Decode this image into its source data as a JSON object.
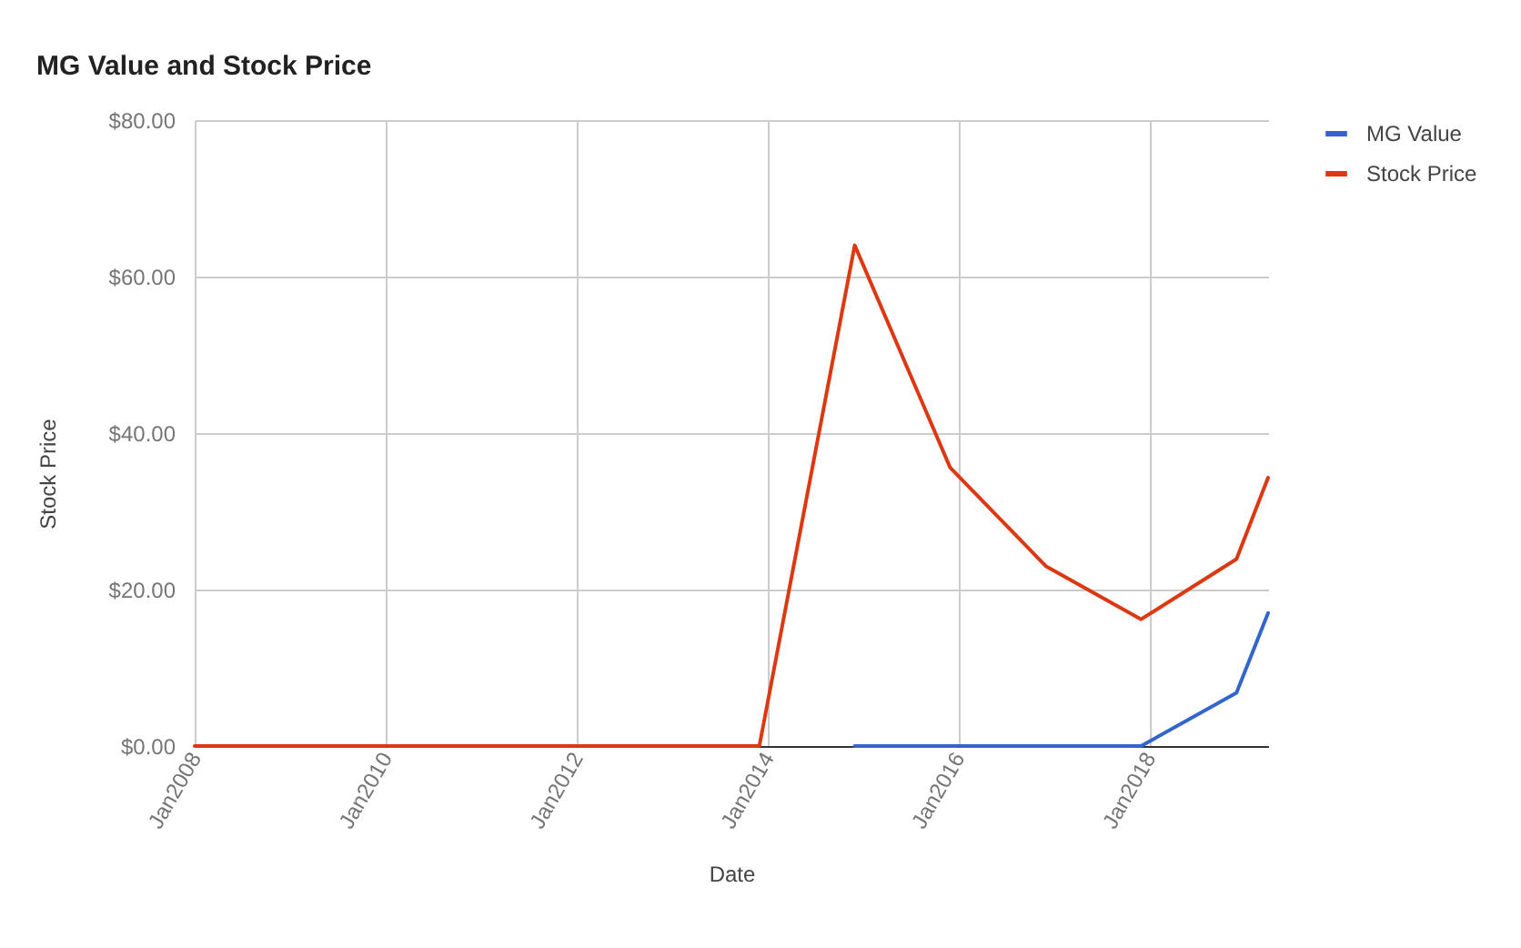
{
  "chart_data": {
    "type": "line",
    "title": "MG Value and Stock Price",
    "xlabel": "Date",
    "ylabel": "Stock Price",
    "xlim": [
      "2008-01",
      "2019-04"
    ],
    "xticks": [
      {
        "value": "2008-01",
        "label": "Jan2008"
      },
      {
        "value": "2010-01",
        "label": "Jan2010"
      },
      {
        "value": "2012-01",
        "label": "Jan2012"
      },
      {
        "value": "2014-01",
        "label": "Jan2014"
      },
      {
        "value": "2016-01",
        "label": "Jan2016"
      },
      {
        "value": "2018-01",
        "label": "Jan2018"
      }
    ],
    "ylim": [
      0,
      80
    ],
    "yticks": [
      {
        "value": 0,
        "label": "$0.00"
      },
      {
        "value": 20,
        "label": "$20.00"
      },
      {
        "value": 40,
        "label": "$40.00"
      },
      {
        "value": 60,
        "label": "$60.00"
      },
      {
        "value": 80,
        "label": "$80.00"
      }
    ],
    "grid": true,
    "legend": "right",
    "line_style": "solid",
    "series": [
      {
        "name": "MG Value",
        "color": "#3366cc",
        "x": [
          "2014-12",
          "2015-12",
          "2016-12",
          "2017-12",
          "2018-12",
          "2019-04"
        ],
        "values": [
          0,
          0,
          0,
          0,
          6.8,
          17
        ]
      },
      {
        "name": "Stock Price",
        "color": "#dc3912",
        "x": [
          "2008-01",
          "2008-12",
          "2009-12",
          "2010-12",
          "2011-12",
          "2012-12",
          "2013-12",
          "2014-12",
          "2015-12",
          "2016-12",
          "2017-12",
          "2018-12",
          "2019-04"
        ],
        "values": [
          0,
          0,
          0,
          0,
          0,
          0,
          0,
          64,
          35.6,
          23,
          16.2,
          23.9,
          34.3
        ]
      }
    ]
  }
}
